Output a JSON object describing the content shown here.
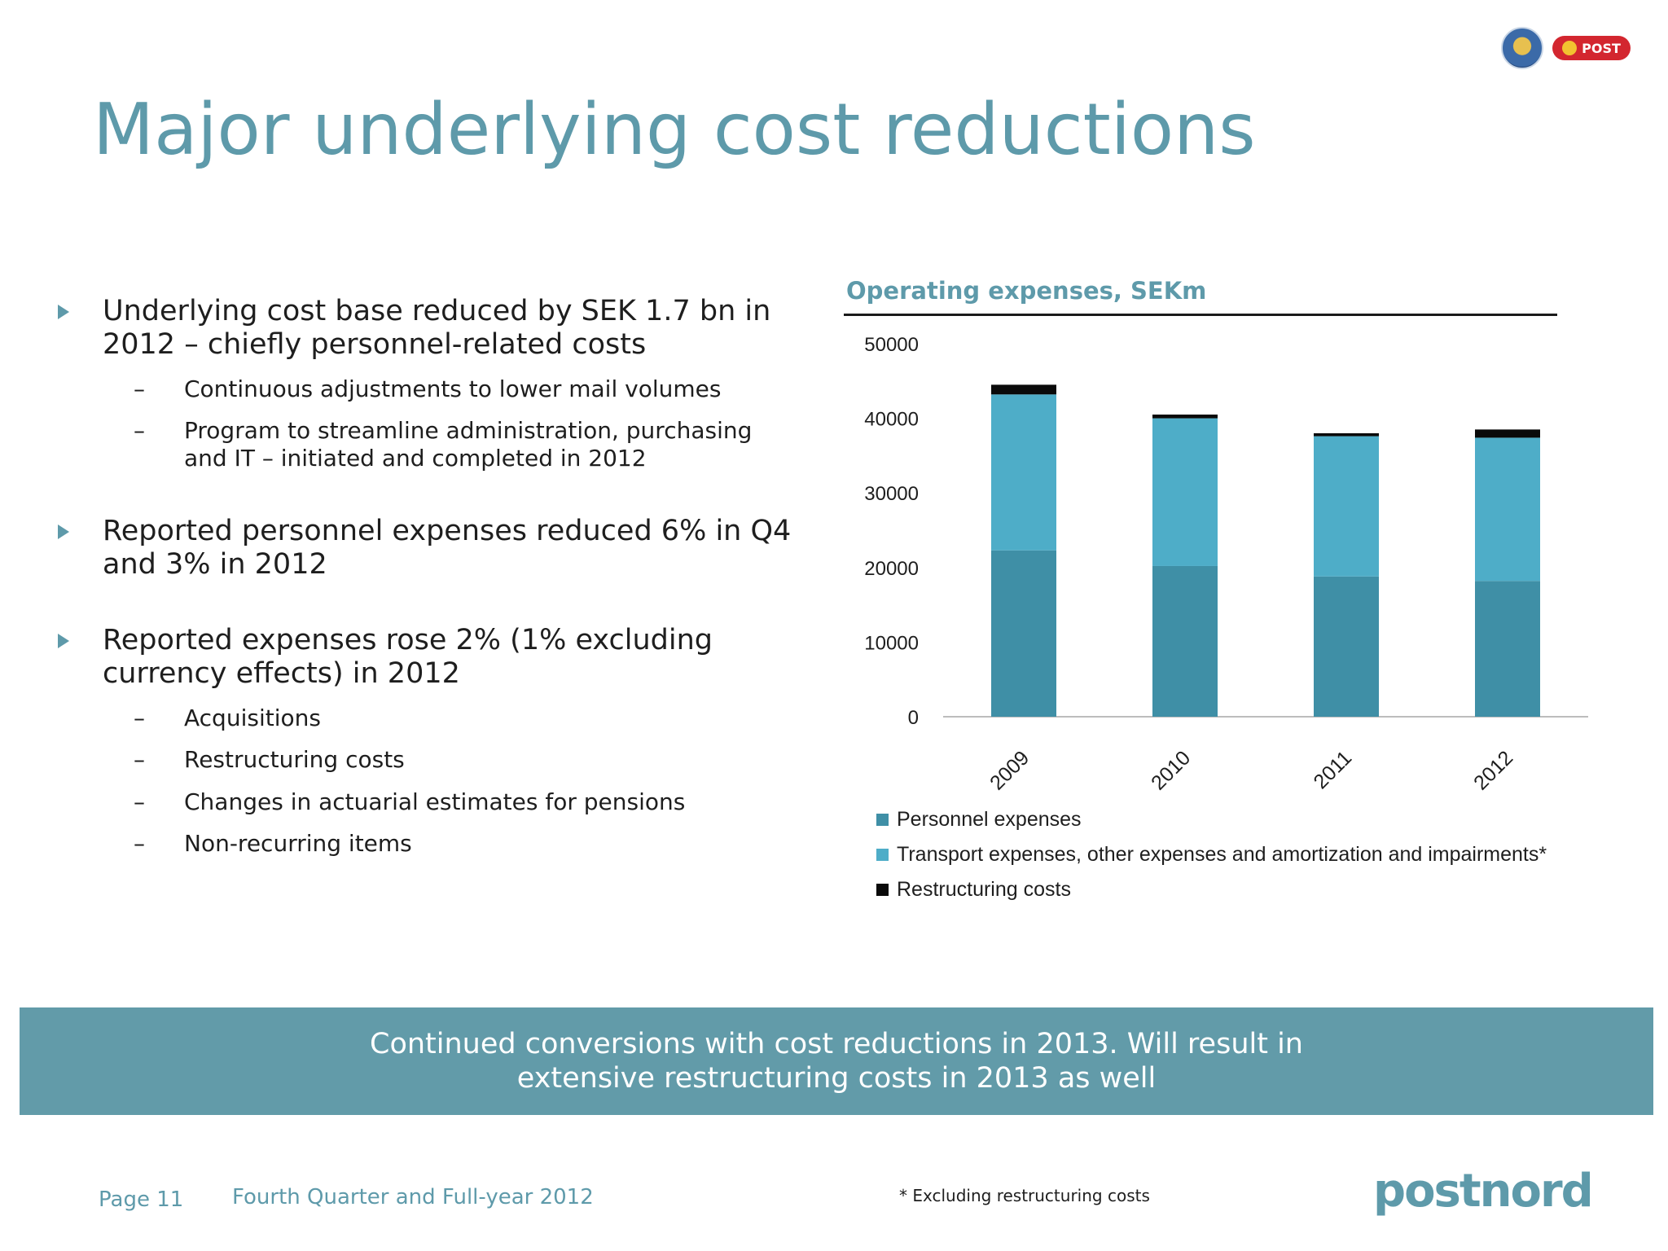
{
  "header": {
    "title": "Major underlying cost reductions"
  },
  "logos": {
    "post_label": "POST"
  },
  "bullets": [
    {
      "lines": [
        "Underlying cost base reduced by SEK 1.7 bn in",
        "2012 – chiefly personnel-related costs"
      ],
      "subs": [
        {
          "lines": [
            "Continuous adjustments to lower mail volumes"
          ]
        },
        {
          "lines": [
            "Program to streamline administration, purchasing",
            "and IT – initiated and completed in 2012"
          ]
        }
      ]
    },
    {
      "lines": [
        "Reported personnel expenses reduced 6% in Q4",
        "and 3% in 2012"
      ],
      "subs": []
    },
    {
      "lines": [
        "Reported expenses rose 2% (1% excluding",
        "currency effects) in 2012"
      ],
      "subs": [
        {
          "lines": [
            "Acquisitions"
          ]
        },
        {
          "lines": [
            "Restructuring costs"
          ]
        },
        {
          "lines": [
            "Changes in actuarial estimates for pensions"
          ]
        },
        {
          "lines": [
            "Non-recurring items"
          ]
        }
      ]
    }
  ],
  "chart_data": {
    "type": "bar",
    "stacked": true,
    "title": "Operating expenses, SEKm",
    "categories": [
      "2009",
      "2010",
      "2011",
      "2012"
    ],
    "series": [
      {
        "name": "Personnel expenses",
        "color": "#3f8fa6",
        "values": [
          22300,
          20200,
          18800,
          18200
        ]
      },
      {
        "name": "Transport expenses, other expenses and amortization and impairments*",
        "color": "#4eadc8",
        "values": [
          20900,
          19800,
          18800,
          19200
        ]
      },
      {
        "name": "Restructuring costs",
        "color": "#0a0a0a",
        "values": [
          1300,
          500,
          400,
          1100
        ]
      }
    ],
    "yticks": [
      "50000",
      "40000",
      "30000",
      "20000",
      "10000",
      "0"
    ],
    "ylim": [
      0,
      50000
    ],
    "grid": false,
    "legend_position": "bottom"
  },
  "banner": {
    "line1": "Continued conversions with cost reductions in 2013. Will result in",
    "line2": "extensive restructuring costs in 2013 as well"
  },
  "footer": {
    "page": "Page 11",
    "quarter": "Fourth Quarter and Full-year 2012",
    "footnote": "* Excluding restructuring costs",
    "brand": "postnord"
  }
}
